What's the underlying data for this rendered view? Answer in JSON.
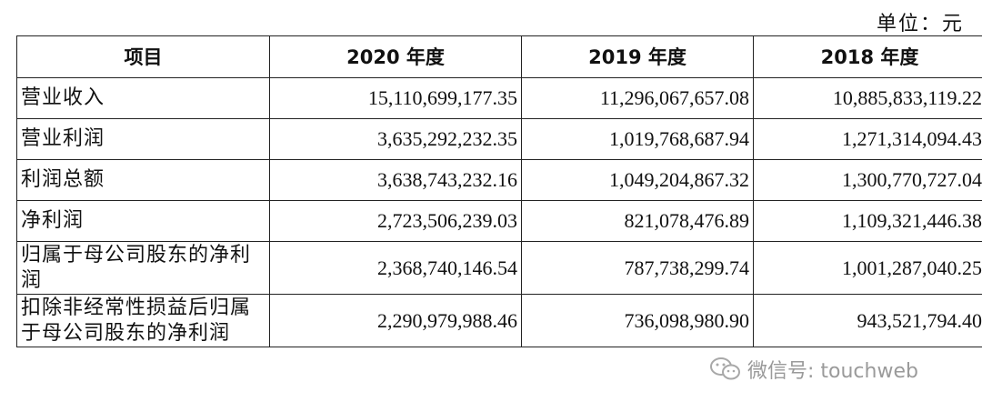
{
  "unit_label": "单位：元",
  "table": {
    "headers": [
      "项目",
      "2020 年度",
      "2019 年度",
      "2018 年度"
    ],
    "rows": [
      {
        "label": "营业收入",
        "values": [
          "15,110,699,177.35",
          "11,296,067,657.08",
          "10,885,833,119.22"
        ]
      },
      {
        "label": "营业利润",
        "values": [
          "3,635,292,232.35",
          "1,019,768,687.94",
          "1,271,314,094.43"
        ]
      },
      {
        "label": "利润总额",
        "values": [
          "3,638,743,232.16",
          "1,049,204,867.32",
          "1,300,770,727.04"
        ]
      },
      {
        "label": "净利润",
        "values": [
          "2,723,506,239.03",
          "821,078,476.89",
          "1,109,321,446.38"
        ]
      },
      {
        "label": "归属于母公司股东的净利润",
        "values": [
          "2,368,740,146.54",
          "787,738,299.74",
          "1,001,287,040.25"
        ]
      },
      {
        "label": "扣除非经常性损益后归属于母公司股东的净利润",
        "values": [
          "2,290,979,988.46",
          "736,098,980.90",
          "943,521,794.40"
        ]
      }
    ]
  },
  "watermark": {
    "text": "微信号: touchweb",
    "icon": "wechat-icon"
  }
}
